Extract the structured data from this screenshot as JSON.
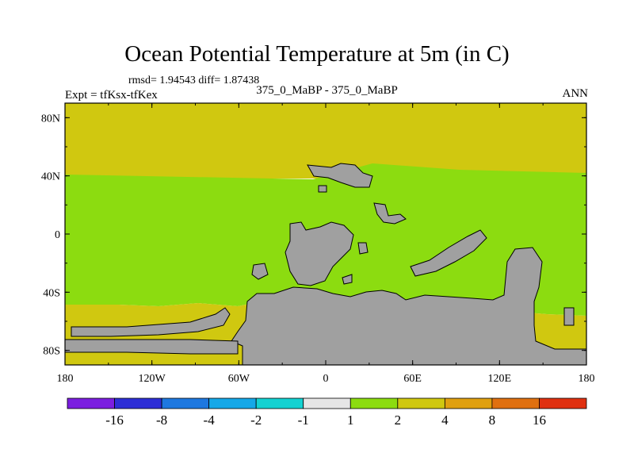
{
  "title": "Ocean Potential Temperature at 5m (in C)",
  "stats_text": "rmsd= 1.94543 diff= 1.87438",
  "expt_text": "Expt = tfKsx-tfKex",
  "subtitle": "375_0_MaBP - 375_0_MaBP",
  "season": "ANN",
  "colors": {
    "land": "#a0a0a0",
    "frame": "#000000",
    "levels": [
      "#7b1ee0",
      "#2d2ed6",
      "#1e78e0",
      "#15a8e8",
      "#14d2d2",
      "#e6e6e6",
      "#8cdc10",
      "#d0c810",
      "#e0a010",
      "#e07010",
      "#e03010"
    ]
  },
  "chart_data": {
    "type": "heatmap",
    "title": "Ocean Potential Temperature at 5m (in C)",
    "projection": "cylindrical-equidistant",
    "x_range": [
      -180,
      180
    ],
    "y_range": [
      -90,
      90
    ],
    "x_ticks": [
      {
        "value": -180,
        "label": "180"
      },
      {
        "value": -120,
        "label": "120W"
      },
      {
        "value": -60,
        "label": "60W"
      },
      {
        "value": 0,
        "label": "0"
      },
      {
        "value": 60,
        "label": "60E"
      },
      {
        "value": 120,
        "label": "120E"
      },
      {
        "value": 180,
        "label": "180"
      }
    ],
    "y_ticks": [
      {
        "value": 80,
        "label": "80N"
      },
      {
        "value": 40,
        "label": "40N"
      },
      {
        "value": 0,
        "label": "0"
      },
      {
        "value": -40,
        "label": "40S"
      },
      {
        "value": -80,
        "label": "80S"
      }
    ],
    "colorbar_labels": [
      "-16",
      "-8",
      "-4",
      "-2",
      "-1",
      "1",
      "2",
      "4",
      "8",
      "16"
    ],
    "zones": [
      {
        "name": "north-band",
        "lat_range": [
          40,
          90
        ],
        "level": "2 to 4"
      },
      {
        "name": "tropical-band",
        "lat_range": [
          -50,
          40
        ],
        "level": "1 to 2"
      },
      {
        "name": "south-band",
        "lat_range": [
          -90,
          -50
        ],
        "level": "2 to 4"
      }
    ],
    "land_mask": "grey fill"
  }
}
